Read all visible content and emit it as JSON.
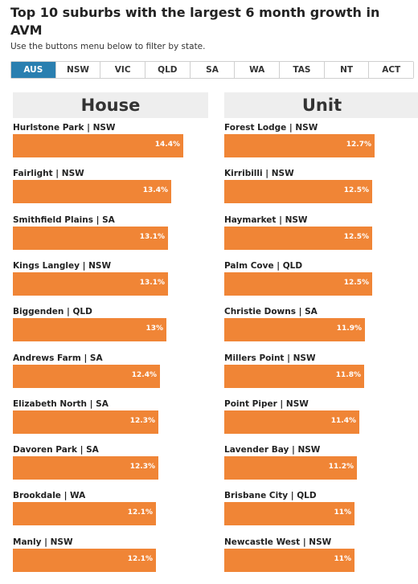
{
  "title": "Top 10 suburbs with the largest 6 month growth in AVM",
  "subtitle": "Use the buttons menu below to filter by state.",
  "tabs": [
    {
      "label": "AUS",
      "active": true
    },
    {
      "label": "NSW",
      "active": false
    },
    {
      "label": "VIC",
      "active": false
    },
    {
      "label": "QLD",
      "active": false
    },
    {
      "label": "SA",
      "active": false
    },
    {
      "label": "WA",
      "active": false
    },
    {
      "label": "TAS",
      "active": false
    },
    {
      "label": "NT",
      "active": false
    },
    {
      "label": "ACT",
      "active": false
    }
  ],
  "colors": {
    "bar": "#f08536",
    "active_tab": "#2a7fb0",
    "header_bg": "#eeeeee"
  },
  "chart_data": [
    {
      "type": "bar",
      "orientation": "horizontal",
      "title": "House",
      "categories": [
        "Hurlstone Park | NSW",
        "Fairlight | NSW",
        "Smithfield Plains | SA",
        "Kings Langley | NSW",
        "Biggenden | QLD",
        "Andrews Farm | SA",
        "Elizabeth North | SA",
        "Davoren Park | SA",
        "Brookdale | WA",
        "Manly | NSW"
      ],
      "values": [
        14.4,
        13.4,
        13.1,
        13.1,
        13.0,
        12.4,
        12.3,
        12.3,
        12.1,
        12.1
      ],
      "labels": [
        "14.4%",
        "13.4%",
        "13.1%",
        "13.1%",
        "13%",
        "12.4%",
        "12.3%",
        "12.3%",
        "12.1%",
        "12.1%"
      ],
      "xlim": [
        0,
        16.5
      ]
    },
    {
      "type": "bar",
      "orientation": "horizontal",
      "title": "Unit",
      "categories": [
        "Forest Lodge | NSW",
        "Kirribilli | NSW",
        "Haymarket | NSW",
        "Palm Cove | QLD",
        "Christie Downs | SA",
        "Millers Point | NSW",
        "Point Piper | NSW",
        "Lavender Bay | NSW",
        "Brisbane City | QLD",
        "Newcastle West | NSW"
      ],
      "values": [
        12.7,
        12.5,
        12.5,
        12.5,
        11.9,
        11.8,
        11.4,
        11.2,
        11.0,
        11.0
      ],
      "labels": [
        "12.7%",
        "12.5%",
        "12.5%",
        "12.5%",
        "11.9%",
        "11.8%",
        "11.4%",
        "11.2%",
        "11%",
        "11%"
      ],
      "xlim": [
        0,
        16.5
      ]
    }
  ]
}
